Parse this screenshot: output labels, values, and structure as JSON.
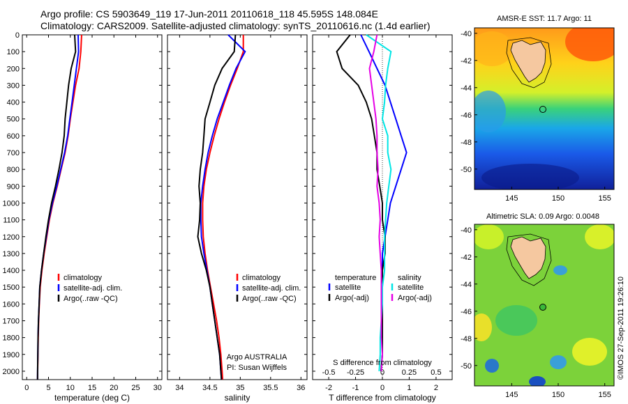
{
  "header": {
    "line1": "Argo profile: CS 5903649_119 17-Jun-2011 20110618_118 45.595S 148.084E",
    "line2": "Climatology: CARS2009. Satellite-adjusted climatology: synTS_20110616.nc (1.4d earlier)"
  },
  "colors": {
    "climatology": "#ff0000",
    "satellite": "#0000ff",
    "argo": "#000000",
    "satellite_s": "#00e5e5",
    "argo_s": "#e500e5"
  },
  "chart_data": [
    {
      "type": "line",
      "panel": "temperature",
      "xlabel": "temperature (deg C)",
      "ylabel": "",
      "xlim": [
        -1,
        31
      ],
      "ylim": [
        2050,
        0
      ],
      "xticks": [
        0,
        5,
        10,
        15,
        20,
        25,
        30
      ],
      "yticks": [
        0,
        100,
        200,
        300,
        400,
        500,
        600,
        700,
        800,
        900,
        1000,
        1100,
        1200,
        1300,
        1400,
        1500,
        1600,
        1700,
        1800,
        1900,
        2000
      ],
      "legend_placement": "lower-center",
      "series": [
        {
          "name": "climatology",
          "color": "#ff0000",
          "x": [
            12.6,
            12.4,
            12.0,
            11.2,
            10.6,
            10.0,
            9.5,
            8.8,
            7.9,
            7.0,
            6.0,
            5.2,
            4.6,
            4.0,
            3.5,
            3.1,
            2.9,
            2.75,
            2.65,
            2.58,
            2.52,
            2.5
          ],
          "y": [
            0,
            100,
            200,
            300,
            400,
            500,
            600,
            700,
            800,
            900,
            1000,
            1100,
            1200,
            1300,
            1400,
            1500,
            1600,
            1700,
            1800,
            1900,
            2000,
            2050
          ]
        },
        {
          "name": "satellite-adj. clim.",
          "color": "#0000ff",
          "x": [
            11.8,
            11.9,
            11.4,
            10.9,
            10.4,
            9.9,
            9.4,
            8.7,
            7.8,
            6.9,
            5.9,
            5.1,
            4.5,
            3.9,
            3.4,
            3.0,
            2.85,
            2.7,
            2.6,
            2.55,
            2.5,
            2.48
          ],
          "y": [
            0,
            100,
            200,
            300,
            400,
            500,
            600,
            700,
            800,
            900,
            1000,
            1100,
            1200,
            1300,
            1400,
            1500,
            1600,
            1700,
            1800,
            1900,
            2000,
            2050
          ]
        },
        {
          "name": "Argo(..raw -QC)",
          "color": "#000000",
          "x": [
            11.0,
            11.2,
            10.2,
            9.6,
            9.2,
            8.8,
            8.6,
            8.1,
            7.4,
            6.6,
            5.7,
            5.0,
            4.4,
            3.9,
            3.4,
            3.0,
            2.85,
            2.7,
            2.6,
            2.55,
            2.5,
            2.48
          ],
          "y": [
            0,
            100,
            200,
            300,
            400,
            500,
            600,
            700,
            800,
            900,
            1000,
            1100,
            1200,
            1300,
            1400,
            1500,
            1600,
            1700,
            1800,
            1900,
            2000,
            2050
          ]
        }
      ]
    },
    {
      "type": "line",
      "panel": "salinity",
      "xlabel": "salinity",
      "ylabel": "",
      "xlim": [
        33.8,
        36.1
      ],
      "ylim": [
        2050,
        0
      ],
      "xticks": [
        34,
        34.5,
        35,
        35.5,
        36
      ],
      "xticklabels": [
        "34",
        "34.5",
        "35",
        "35.5",
        "36"
      ],
      "legend_placement": "lower-center",
      "annotations": [
        "Argo AUSTRALIA",
        "PI: Susan Wijffels"
      ],
      "series": [
        {
          "name": "climatology",
          "color": "#ff0000",
          "x": [
            35.05,
            35.05,
            34.95,
            34.84,
            34.74,
            34.65,
            34.57,
            34.5,
            34.44,
            34.4,
            34.38,
            34.38,
            34.39,
            34.42,
            34.46,
            34.51,
            34.56,
            34.61,
            34.65,
            34.68,
            34.7,
            34.71
          ],
          "y": [
            0,
            100,
            200,
            300,
            400,
            500,
            600,
            700,
            800,
            900,
            1000,
            1100,
            1200,
            1300,
            1400,
            1500,
            1600,
            1700,
            1800,
            1900,
            2000,
            2050
          ]
        },
        {
          "name": "satellite-adj. clim.",
          "color": "#0000ff",
          "x": [
            34.8,
            35.08,
            34.93,
            34.82,
            34.72,
            34.62,
            34.54,
            34.47,
            34.42,
            34.38,
            34.35,
            34.35,
            34.36,
            34.4,
            34.45,
            34.5,
            34.54,
            34.58,
            34.62,
            34.66,
            34.68,
            34.69
          ],
          "y": [
            0,
            100,
            200,
            300,
            400,
            500,
            600,
            700,
            800,
            900,
            1000,
            1100,
            1200,
            1300,
            1400,
            1500,
            1600,
            1700,
            1800,
            1900,
            2000,
            2050
          ]
        },
        {
          "name": "Argo(..raw -QC)",
          "color": "#000000",
          "x": [
            34.92,
            34.9,
            34.7,
            34.58,
            34.5,
            34.42,
            34.4,
            34.38,
            34.34,
            34.32,
            34.34,
            34.33,
            34.3,
            34.36,
            34.44,
            34.5,
            34.54,
            34.58,
            34.62,
            34.66,
            34.68,
            34.69
          ],
          "y": [
            0,
            100,
            200,
            300,
            400,
            500,
            600,
            700,
            800,
            900,
            1000,
            1100,
            1200,
            1300,
            1400,
            1500,
            1600,
            1700,
            1800,
            1900,
            2000,
            2050
          ]
        }
      ]
    },
    {
      "type": "line",
      "panel": "difference",
      "xlabel": "T difference from climatology",
      "xlabel_top": "S difference from climatology",
      "xlim": [
        -2.6,
        2.6
      ],
      "ylim": [
        2050,
        0
      ],
      "xticks": [
        -2,
        -1,
        0,
        1,
        2
      ],
      "s_ticklabels": [
        "-0.5",
        "-0.25",
        "0",
        "0.25",
        "0.5"
      ],
      "legend_placement": "lower-center",
      "legend_headers": [
        "temperature",
        "salinity"
      ],
      "series": [
        {
          "name": "satellite",
          "group": "temperature",
          "color": "#0000ff",
          "x": [
            -0.8,
            -0.5,
            -0.2,
            0.1,
            0.3,
            0.5,
            0.7,
            0.9,
            0.7,
            0.5,
            0.3,
            0.2,
            0.1,
            0.0,
            0.0,
            0.0,
            0.0,
            0.0,
            0.0,
            0.0,
            -0.05
          ],
          "y": [
            0,
            100,
            200,
            300,
            400,
            500,
            600,
            700,
            800,
            900,
            1000,
            1100,
            1200,
            1300,
            1400,
            1500,
            1600,
            1700,
            1800,
            1900,
            2000
          ]
        },
        {
          "name": "Argo(-adj)",
          "group": "temperature",
          "color": "#000000",
          "x": [
            -1.2,
            -1.7,
            -1.5,
            -0.9,
            -0.6,
            -0.4,
            -0.3,
            -0.2,
            -0.2,
            -0.1,
            0.0,
            0.0,
            0.1,
            0.1,
            0.0,
            0.0,
            0.0,
            0.0,
            0.0,
            0.0,
            -0.05
          ],
          "y": [
            0,
            100,
            200,
            300,
            400,
            500,
            600,
            700,
            800,
            900,
            1000,
            1100,
            1200,
            1300,
            1400,
            1500,
            1600,
            1700,
            1800,
            1900,
            2000
          ]
        },
        {
          "name": "satellite",
          "group": "salinity",
          "color": "#00e5e5",
          "x": [
            -0.15,
            0.08,
            0.05,
            0.03,
            0.02,
            0.0,
            0.05,
            0.05,
            0.08,
            0.06,
            0.04,
            0.03,
            0.02,
            0.02,
            0.02,
            0.0,
            0.0,
            -0.01,
            -0.02,
            -0.02,
            -0.03
          ],
          "y": [
            0,
            100,
            200,
            300,
            400,
            500,
            600,
            700,
            800,
            900,
            1000,
            1100,
            1200,
            1300,
            1400,
            1500,
            1600,
            1700,
            1800,
            1900,
            2000
          ]
        },
        {
          "name": "Argo(-adj)",
          "group": "salinity",
          "color": "#e500e5",
          "x": [
            -0.05,
            -0.08,
            -0.12,
            -0.1,
            -0.08,
            -0.06,
            -0.05,
            -0.05,
            -0.04,
            -0.05,
            -0.03,
            -0.02,
            -0.03,
            -0.02,
            -0.01,
            -0.01,
            -0.01,
            -0.01,
            -0.01,
            0.0,
            -0.01
          ],
          "y": [
            0,
            100,
            200,
            300,
            400,
            500,
            600,
            700,
            800,
            900,
            1000,
            1100,
            1200,
            1300,
            1400,
            1500,
            1600,
            1700,
            1800,
            1900,
            2000
          ]
        }
      ]
    },
    {
      "type": "heatmap",
      "panel": "sst_map",
      "title": "AMSR-E SST: 11.7 Argo: 11",
      "xlim": [
        141,
        156
      ],
      "ylim": [
        -51.5,
        -39.6
      ],
      "xticks": [
        145,
        150,
        155
      ],
      "yticks": [
        -40,
        -42,
        -44,
        -46,
        -48,
        -50
      ],
      "marker": {
        "lon": 148.084,
        "lat": -45.595
      }
    },
    {
      "type": "heatmap",
      "panel": "sla_map",
      "title": "Altimetric SLA: 0.09 Argo: 0.0048",
      "xlim": [
        141,
        156
      ],
      "ylim": [
        -51.5,
        -39.6
      ],
      "xticks": [
        145,
        150,
        155
      ],
      "yticks": [
        -40,
        -42,
        -44,
        -46,
        -48,
        -50
      ],
      "marker": {
        "lon": 148.084,
        "lat": -45.595
      }
    }
  ],
  "credit": "©IMOS 27-Sep-2011 19:26:10"
}
